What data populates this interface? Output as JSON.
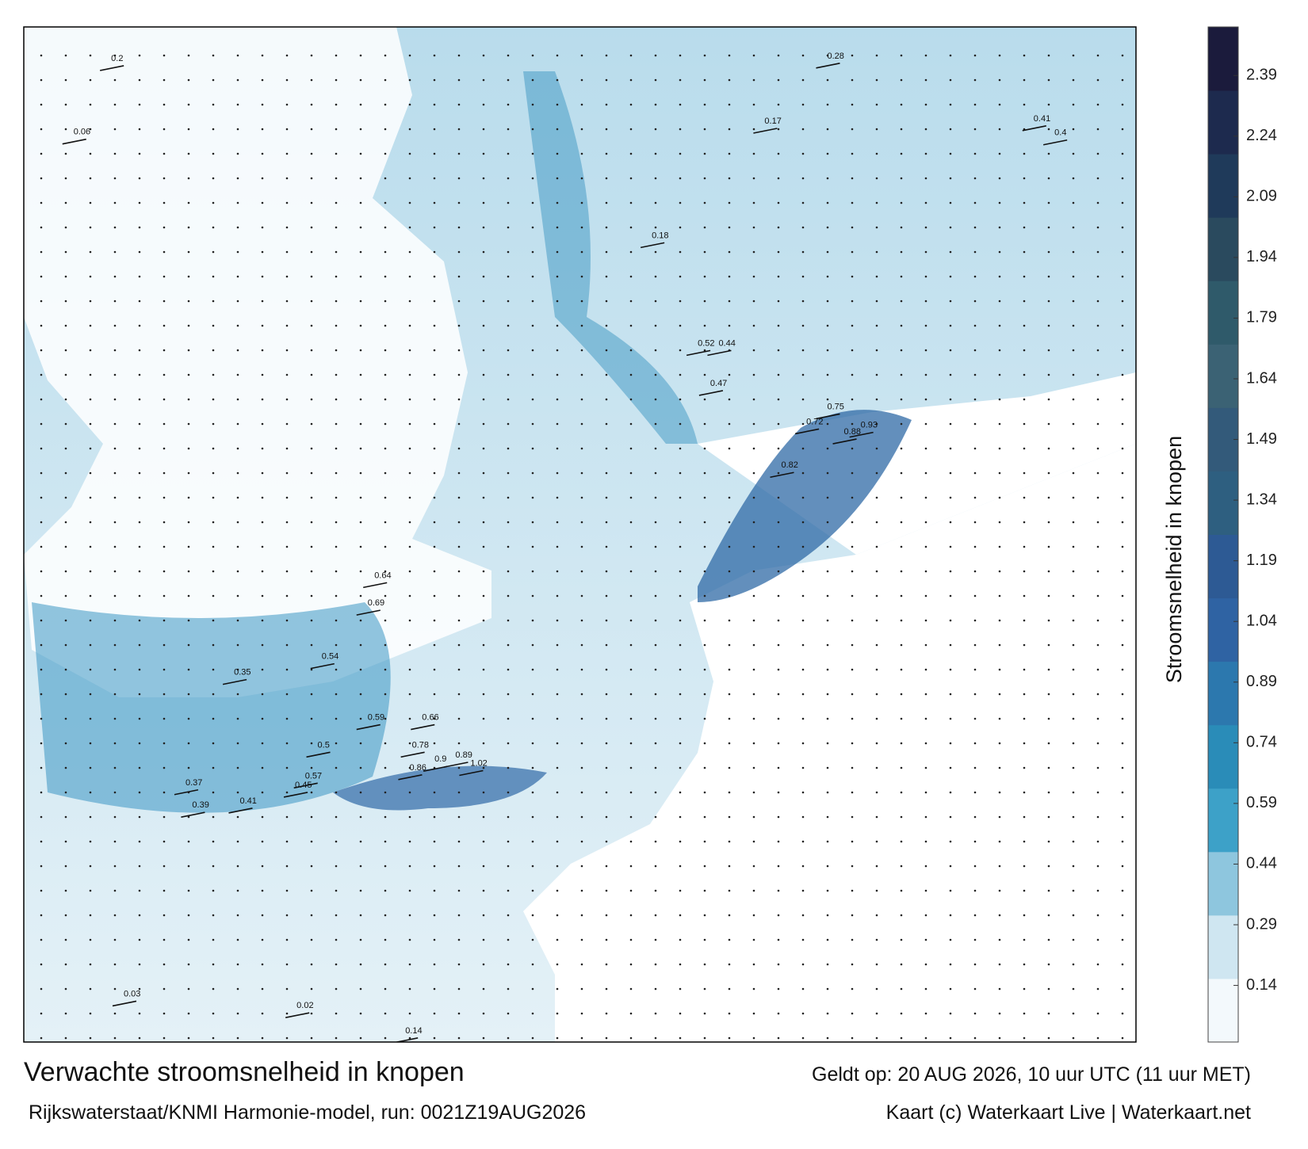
{
  "map": {
    "title": "Verwachte stroomsnelheid in knopen",
    "subtitle": "Rijkswaterstaat/KNMI Harmonie-model, run: 0021Z19AUG2026",
    "valid": "Geldt op: 20 AUG 2026, 10 uur UTC (11 uur MET)",
    "credit": "Kaart (c) Waterkaart Live | Waterkaart.net",
    "colorbar": {
      "label": "Stroomsnelheid in knopen",
      "lim": [
        0,
        2.51
      ],
      "ticks": [
        0.14,
        0.29,
        0.44,
        0.59,
        0.74,
        0.89,
        1.04,
        1.19,
        1.34,
        1.49,
        1.64,
        1.79,
        1.94,
        2.09,
        2.24,
        2.39
      ],
      "colors": [
        "#f3f9fc",
        "#cfe6f1",
        "#8ec6de",
        "#3da1c8",
        "#2a8cb8",
        "#2c78ae",
        "#2f63a3",
        "#2d5a94",
        "#2e5f80",
        "#335a7a",
        "#3b6274",
        "#2f5a6a",
        "#2a4a5e",
        "#1f3a5a",
        "#1d2a4e",
        "#1b1b3c"
      ]
    },
    "current_labels": [
      0.93,
      0.88,
      0.75,
      0.72,
      0.82,
      0.86,
      0.9,
      1.02,
      0.89,
      0.78,
      0.57,
      0.45,
      0.39,
      0.41,
      0.37,
      0.5,
      0.59,
      0.66,
      0.35,
      0.54,
      0.69,
      0.64,
      0.47,
      0.52,
      0.44,
      0.28,
      0.41,
      0.4,
      0.17,
      0.18,
      0.14,
      0.03,
      0.02,
      0.06,
      0.2
    ]
  }
}
